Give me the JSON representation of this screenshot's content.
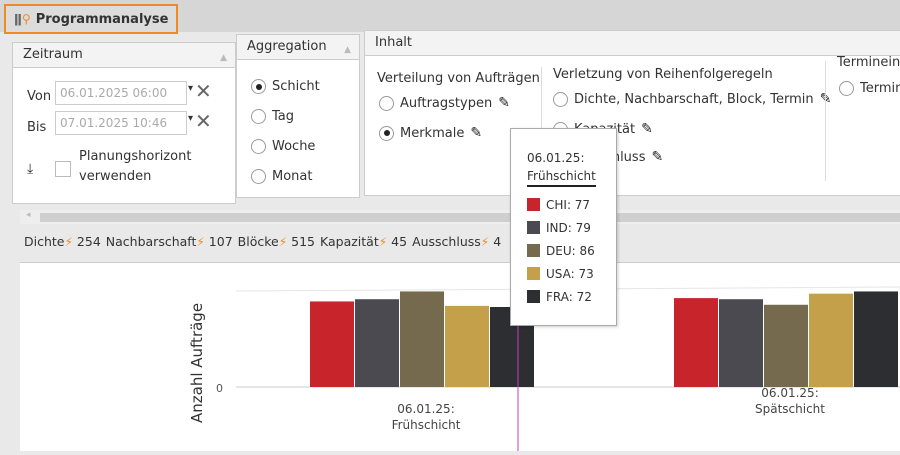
{
  "window": {
    "title": "Programmanalyse",
    "icon": "chart-search-icon"
  },
  "zeitraum": {
    "title": "Zeitraum",
    "von_label": "Von",
    "von_value": "06.01.2025 06:00",
    "bis_label": "Bis",
    "bis_value": "07.01.2025 10:46",
    "checkbox_label_1": "Planungshorizont",
    "checkbox_label_2": "verwenden",
    "checked": false
  },
  "aggregation": {
    "title": "Aggregation",
    "options": [
      "Schicht",
      "Tag",
      "Woche",
      "Monat"
    ],
    "selected": "Schicht"
  },
  "inhalt": {
    "title": "Inhalt",
    "verteilung": {
      "title": "Verteilung von Aufträgen",
      "options": [
        "Auftragstypen",
        "Merkmale"
      ],
      "selected": "Merkmale"
    },
    "verletzung": {
      "title": "Verletzung von Reihenfolgeregeln",
      "options": [
        "Dichte, Nachbarschaft, Block, Termin",
        "Kapazität",
        "Ausschluss"
      ]
    },
    "termin": {
      "title": "Termineinh",
      "option": "Terminr"
    }
  },
  "stats": [
    {
      "label": "Dichte",
      "value": "254"
    },
    {
      "label": "Nachbarschaft",
      "value": "107"
    },
    {
      "label": "Blöcke",
      "value": "515"
    },
    {
      "label": "Kapazität",
      "value": "45"
    },
    {
      "label": "Ausschluss",
      "value": "4"
    }
  ],
  "tooltip": {
    "title_1": "06.01.25:",
    "title_2": "Frühschicht",
    "items": [
      {
        "label": "CHI: 77"
      },
      {
        "label": "IND: 79"
      },
      {
        "label": "DEU: 86"
      },
      {
        "label": "USA: 73"
      },
      {
        "label": "FRA: 72"
      }
    ]
  },
  "chart_data": {
    "type": "bar",
    "ylabel": "Anzahl Aufträge",
    "yticks": [
      "0"
    ],
    "categories": [
      [
        "06.01.25:",
        "Frühschicht"
      ],
      [
        "06.01.25:",
        "Spätschicht"
      ]
    ],
    "series": [
      {
        "name": "CHI",
        "color": "#c8242c",
        "values": [
          77,
          80
        ]
      },
      {
        "name": "IND",
        "color": "#4a4a50",
        "values": [
          79,
          79
        ]
      },
      {
        "name": "DEU",
        "color": "#756a4e",
        "values": [
          86,
          74
        ]
      },
      {
        "name": "USA",
        "color": "#c4a04a",
        "values": [
          73,
          84
        ]
      },
      {
        "name": "FRA",
        "color": "#2c2e31",
        "values": [
          72,
          86
        ]
      }
    ]
  }
}
